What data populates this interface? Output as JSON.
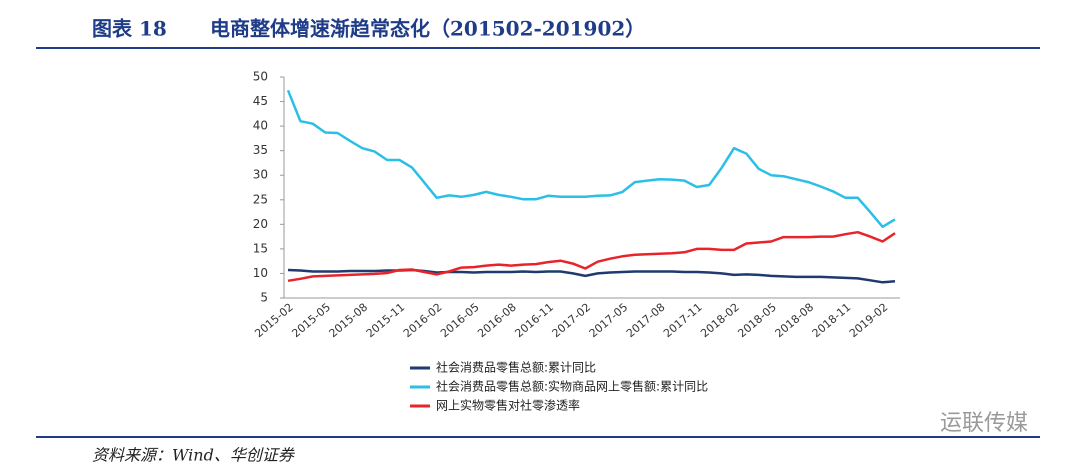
{
  "chart_data": {
    "type": "line",
    "figure_label": "图表 18",
    "title": "电商整体增速渐趋常态化（201502-201902）",
    "source": "资料来源：Wind、华创证券",
    "watermark": "运联传媒",
    "categories": [
      "2015-02",
      null,
      null,
      "2015-05",
      null,
      null,
      "2015-08",
      null,
      null,
      "2015-11",
      null,
      null,
      "2016-02",
      null,
      null,
      "2016-05",
      null,
      null,
      "2016-08",
      null,
      null,
      "2016-11",
      null,
      null,
      "2017-02",
      null,
      null,
      "2017-05",
      null,
      null,
      "2017-08",
      null,
      null,
      "2017-11",
      null,
      null,
      "2018-02",
      null,
      null,
      "2018-05",
      null,
      null,
      "2018-08",
      null,
      null,
      "2018-11",
      null,
      null,
      "2019-02",
      null
    ],
    "ylim": [
      5,
      50
    ],
    "yticks": [
      5,
      10,
      15,
      20,
      25,
      30,
      35,
      40,
      45,
      50
    ],
    "grid": false,
    "legend": "bottom",
    "series": [
      {
        "name": "社会消费品零售总额:累计同比",
        "color": "#1f3a6e",
        "values": [
          10.7,
          10.6,
          10.4,
          10.4,
          10.4,
          10.5,
          10.5,
          10.5,
          10.6,
          10.6,
          10.7,
          10.5,
          10.2,
          10.3,
          10.3,
          10.2,
          10.3,
          10.3,
          10.3,
          10.4,
          10.3,
          10.4,
          10.4,
          10.0,
          9.5,
          10.0,
          10.2,
          10.3,
          10.4,
          10.4,
          10.4,
          10.4,
          10.3,
          10.3,
          10.2,
          10.0,
          9.7,
          9.8,
          9.7,
          9.5,
          9.4,
          9.3,
          9.3,
          9.3,
          9.2,
          9.1,
          9.0,
          8.6,
          8.2,
          8.4
        ]
      },
      {
        "name": "社会消费品零售总额:实物商品网上零售额:累计同比",
        "color": "#2bbfe8",
        "values": [
          47.3,
          41.0,
          40.5,
          38.7,
          38.6,
          37.0,
          35.5,
          34.8,
          33.1,
          33.1,
          31.6,
          28.5,
          25.4,
          25.9,
          25.6,
          26.0,
          26.6,
          26.0,
          25.6,
          25.1,
          25.1,
          25.8,
          25.6,
          25.6,
          25.6,
          25.8,
          25.9,
          26.6,
          28.6,
          28.9,
          29.2,
          29.1,
          28.9,
          27.6,
          28.0,
          31.5,
          35.5,
          34.4,
          31.3,
          30.0,
          29.8,
          29.2,
          28.6,
          27.7,
          26.7,
          25.4,
          25.4,
          22.5,
          19.5,
          21.0
        ]
      },
      {
        "name": "网上实物零售对社零渗透率",
        "color": "#e8242a",
        "values": [
          8.5,
          8.9,
          9.4,
          9.5,
          9.6,
          9.7,
          9.8,
          9.9,
          10.1,
          10.7,
          10.8,
          10.3,
          9.8,
          10.4,
          11.2,
          11.3,
          11.6,
          11.8,
          11.6,
          11.8,
          11.9,
          12.3,
          12.6,
          12.0,
          11.0,
          12.4,
          13.0,
          13.5,
          13.8,
          13.9,
          14.0,
          14.1,
          14.3,
          15.0,
          15.0,
          14.8,
          14.8,
          16.1,
          16.3,
          16.5,
          17.4,
          17.4,
          17.4,
          17.5,
          17.5,
          18.0,
          18.4,
          17.5,
          16.5,
          18.2
        ]
      }
    ]
  }
}
